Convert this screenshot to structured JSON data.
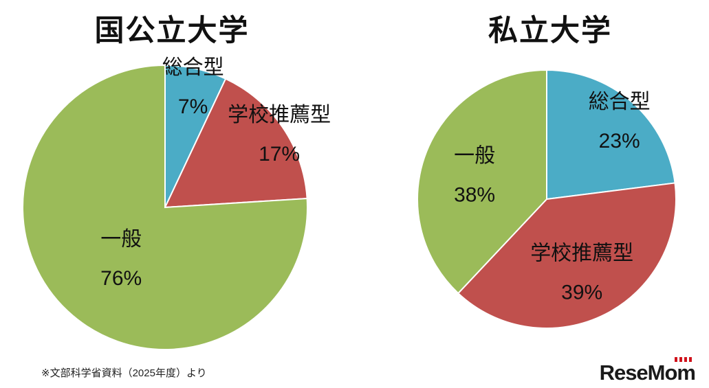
{
  "chart_data": [
    {
      "type": "pie",
      "title": "国公立大学",
      "legend": "none",
      "label_style": "name-and-percent-on-slice",
      "start_angle_deg": 0,
      "direction": "clockwise",
      "slices": [
        {
          "label": "総合型",
          "value": 7,
          "percent_label": "7%",
          "color": "#4BACC6"
        },
        {
          "label": "学校推薦型",
          "value": 17,
          "percent_label": "17%",
          "color": "#C0504D"
        },
        {
          "label": "一般",
          "value": 76,
          "percent_label": "76%",
          "color": "#9BBB59"
        }
      ]
    },
    {
      "type": "pie",
      "title": "私立大学",
      "legend": "none",
      "label_style": "name-and-percent-on-slice",
      "start_angle_deg": 0,
      "direction": "clockwise",
      "slices": [
        {
          "label": "総合型",
          "value": 23,
          "percent_label": "23%",
          "color": "#4BACC6"
        },
        {
          "label": "学校推薦型",
          "value": 39,
          "percent_label": "39%",
          "color": "#C0504D"
        },
        {
          "label": "一般",
          "value": 38,
          "percent_label": "38%",
          "color": "#9BBB59"
        }
      ]
    }
  ],
  "footer": {
    "source_note": "※文部科学省資料（2025年度）より"
  },
  "branding": {
    "logo_text": "ReseMom",
    "logo_accent_color": "#d0121b"
  }
}
